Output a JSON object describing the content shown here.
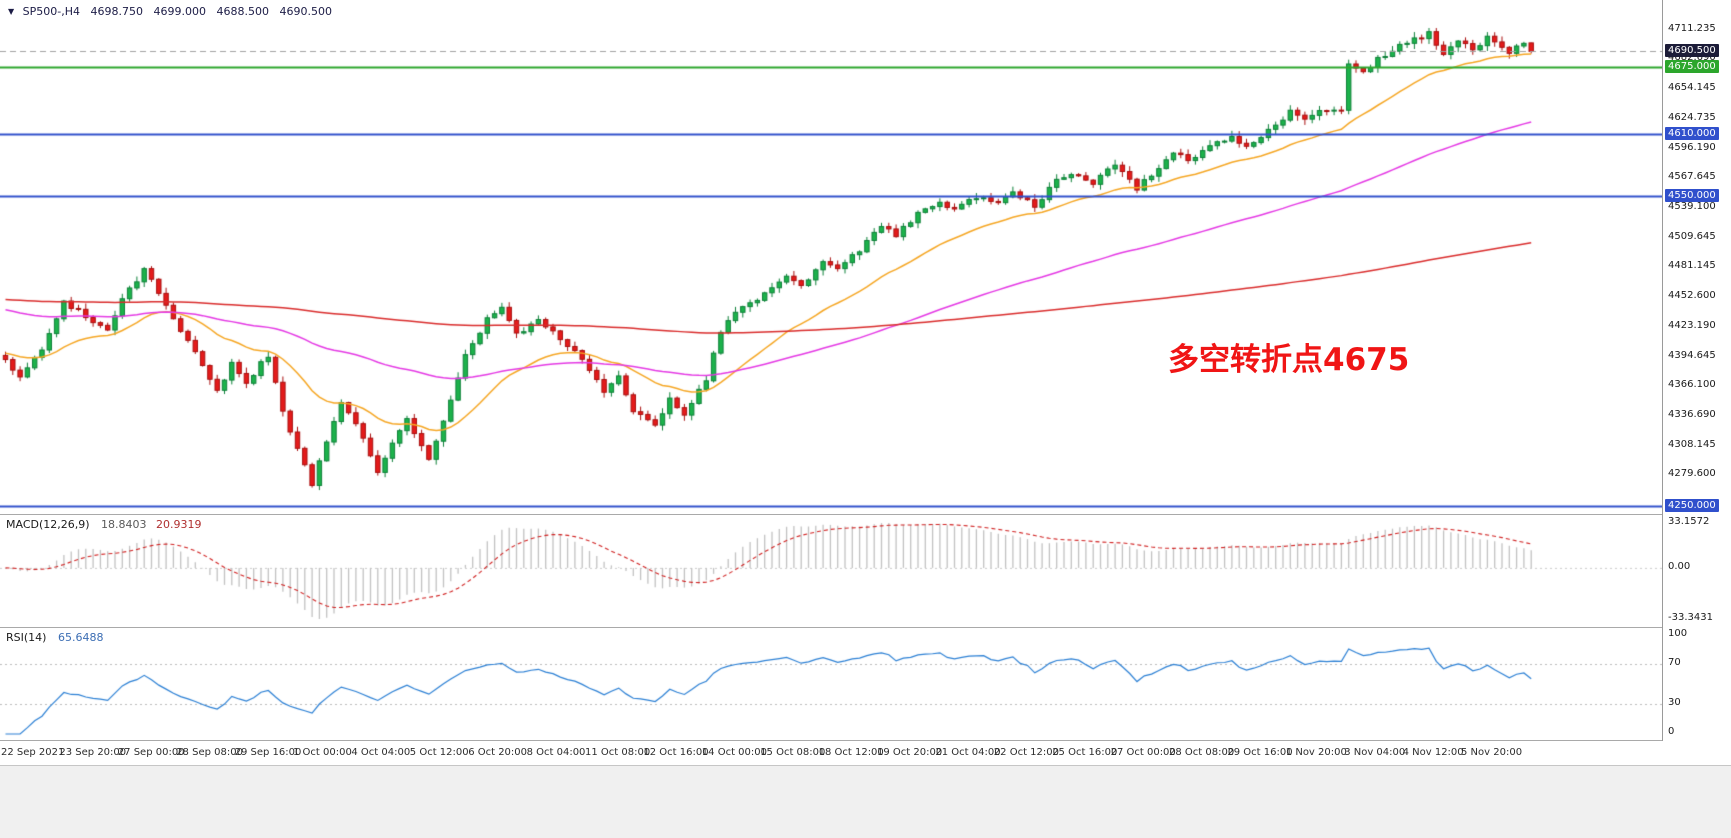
{
  "header": {
    "symbol_timeframe": "SP500-,H4",
    "open": "4698.750",
    "high": "4699.000",
    "low": "4688.500",
    "close": "4690.500"
  },
  "annotation": {
    "text": "多空转折点4675",
    "color": "#f01515"
  },
  "colors": {
    "background": "#ffffff",
    "up_candle": "#1cb24b",
    "up_candle_border": "#0d8038",
    "down_candle": "#e41b1b",
    "down_candle_border": "#a80f0f",
    "ma_fast": "#f5a623",
    "ma_medium": "#e438e4",
    "ma_slow": "#d92b2b",
    "macd_histogram": "#c2c2c2",
    "macd_signal": "#d02020",
    "macd_zero": "#c9c9c9",
    "rsi_line": "#2a7fd4",
    "rsi_levels": "#bbbbbb",
    "level_green": "#2ca62c",
    "level_blue": "#3050cc",
    "bid_line": "#a0a0a0",
    "bid_badge_bg": "#1c1c38",
    "axis_text": "#1a1a1a",
    "time_text": "#2d2d2d"
  },
  "price_axis": {
    "ticks": [
      {
        "label": "4711.235",
        "value": 4711.235
      },
      {
        "label": "4682.690",
        "value": 4682.69
      },
      {
        "label": "4654.145",
        "value": 4654.145
      },
      {
        "label": "4624.735",
        "value": 4624.735
      },
      {
        "label": "4596.190",
        "value": 4596.19
      },
      {
        "label": "4567.645",
        "value": 4567.645
      },
      {
        "label": "4539.100",
        "value": 4539.1
      },
      {
        "label": "4509.645",
        "value": 4509.645
      },
      {
        "label": "4481.145",
        "value": 4481.145
      },
      {
        "label": "4452.600",
        "value": 4452.6
      },
      {
        "label": "4423.190",
        "value": 4423.19
      },
      {
        "label": "4394.645",
        "value": 4394.645
      },
      {
        "label": "4366.100",
        "value": 4366.1
      },
      {
        "label": "4336.690",
        "value": 4336.69
      },
      {
        "label": "4308.145",
        "value": 4308.145
      },
      {
        "label": "4279.600",
        "value": 4279.6
      }
    ],
    "badges": [
      {
        "label": "4690.500",
        "value": 4690.5,
        "bg": "#1c1c38"
      },
      {
        "label": "4675.000",
        "value": 4675.0,
        "bg": "#2ca62c"
      },
      {
        "label": "4610.000",
        "value": 4610.0,
        "bg": "#3050cc"
      },
      {
        "label": "4550.000",
        "value": 4550.0,
        "bg": "#3050cc"
      },
      {
        "label": "4250.000",
        "value": 4250.0,
        "bg": "#3050cc"
      }
    ]
  },
  "levels": [
    {
      "name": "bid-price-line",
      "value": 4690.5,
      "color": "#a0a0a0",
      "width": 1,
      "dash": true
    },
    {
      "name": "green-level-4675",
      "value": 4675,
      "color": "#2ca62c",
      "width": 2,
      "dash": false
    },
    {
      "name": "blue-level-4610",
      "value": 4610,
      "color": "#3050cc",
      "width": 2,
      "dash": false
    },
    {
      "name": "blue-level-4550",
      "value": 4550,
      "color": "#3050cc",
      "width": 2,
      "dash": false
    },
    {
      "name": "blue-level-4250",
      "value": 4250,
      "color": "#3050cc",
      "width": 2,
      "dash": false
    }
  ],
  "macd_panel": {
    "label": "MACD(12,26,9)",
    "value_main": "18.8403",
    "value_signal": "20.9319",
    "axis_max": "33.1572",
    "axis_zero": "0.00",
    "axis_min": "-33.3431"
  },
  "rsi_panel": {
    "label": "RSI(14)",
    "value": "65.6488",
    "axis_top": "100",
    "axis_upper": "70",
    "axis_lower": "30",
    "axis_bottom": "0"
  },
  "time_axis": {
    "labels": [
      "22 Sep 2021",
      "23 Sep 20:00",
      "27 Sep 00:00",
      "28 Sep 08:00",
      "29 Sep 16:00",
      "1 Oct 00:00",
      "4 Oct 04:00",
      "5 Oct 12:00",
      "6 Oct 20:00",
      "8 Oct 04:00",
      "11 Oct 08:00",
      "12 Oct 16:00",
      "14 Oct 00:00",
      "15 Oct 08:00",
      "18 Oct 12:00",
      "19 Oct 20:00",
      "21 Oct 04:00",
      "22 Oct 12:00",
      "25 Oct 16:00",
      "27 Oct 00:00",
      "28 Oct 08:00",
      "29 Oct 16:00",
      "1 Nov 20:00",
      "3 Nov 04:00",
      "4 Nov 12:00",
      "5 Nov 20:00"
    ]
  },
  "chart_data": {
    "type": "candlestick",
    "symbol": "SP500-",
    "timeframe": "H4",
    "title": "SP500- H4 candlestick chart with MACD(12,26,9) and RSI(14)",
    "last_ohlc": {
      "open": 4698.75,
      "high": 4699.0,
      "low": 4688.5,
      "close": 4690.5
    },
    "visible_price_range": [
      4244,
      4740
    ],
    "candle_count": 210,
    "candles_per_label": 8,
    "close_anchors": [
      [
        0,
        4392
      ],
      [
        2,
        4374
      ],
      [
        5,
        4400
      ],
      [
        8,
        4448
      ],
      [
        11,
        4434
      ],
      [
        14,
        4420
      ],
      [
        16,
        4452
      ],
      [
        19,
        4478
      ],
      [
        22,
        4446
      ],
      [
        24,
        4420
      ],
      [
        27,
        4386
      ],
      [
        29,
        4360
      ],
      [
        31,
        4388
      ],
      [
        33,
        4370
      ],
      [
        36,
        4396
      ],
      [
        38,
        4340
      ],
      [
        42,
        4272
      ],
      [
        44,
        4312
      ],
      [
        46,
        4352
      ],
      [
        48,
        4330
      ],
      [
        51,
        4283
      ],
      [
        53,
        4310
      ],
      [
        55,
        4335
      ],
      [
        58,
        4296
      ],
      [
        60,
        4330
      ],
      [
        63,
        4398
      ],
      [
        66,
        4430
      ],
      [
        68,
        4442
      ],
      [
        70,
        4415
      ],
      [
        73,
        4430
      ],
      [
        75,
        4420
      ],
      [
        78,
        4400
      ],
      [
        80,
        4382
      ],
      [
        82,
        4360
      ],
      [
        84,
        4374
      ],
      [
        86,
        4342
      ],
      [
        89,
        4328
      ],
      [
        91,
        4352
      ],
      [
        93,
        4338
      ],
      [
        96,
        4372
      ],
      [
        98,
        4420
      ],
      [
        100,
        4438
      ],
      [
        104,
        4456
      ],
      [
        107,
        4472
      ],
      [
        109,
        4464
      ],
      [
        112,
        4486
      ],
      [
        114,
        4478
      ],
      [
        117,
        4498
      ],
      [
        120,
        4520
      ],
      [
        122,
        4512
      ],
      [
        125,
        4532
      ],
      [
        128,
        4543
      ],
      [
        130,
        4536
      ],
      [
        133,
        4549
      ],
      [
        136,
        4546
      ],
      [
        138,
        4554
      ],
      [
        141,
        4540
      ],
      [
        144,
        4565
      ],
      [
        146,
        4573
      ],
      [
        149,
        4561
      ],
      [
        152,
        4582
      ],
      [
        155,
        4558
      ],
      [
        157,
        4572
      ],
      [
        160,
        4592
      ],
      [
        162,
        4584
      ],
      [
        165,
        4600
      ],
      [
        168,
        4606
      ],
      [
        170,
        4598
      ],
      [
        173,
        4614
      ],
      [
        176,
        4632
      ],
      [
        178,
        4625
      ],
      [
        181,
        4634
      ],
      [
        183,
        4632
      ],
      [
        184,
        4680
      ],
      [
        186,
        4672
      ],
      [
        189,
        4688
      ],
      [
        192,
        4700
      ],
      [
        195,
        4708
      ],
      [
        197,
        4688
      ],
      [
        199,
        4700
      ],
      [
        201,
        4692
      ],
      [
        203,
        4704
      ],
      [
        206,
        4688
      ],
      [
        208,
        4699
      ],
      [
        209,
        4690.5
      ]
    ],
    "moving_averages": [
      {
        "name": "fast-ma",
        "color": "#f5a623",
        "alpha": 0.09,
        "seed": 4398
      },
      {
        "name": "medium-ma",
        "color": "#e438e4",
        "alpha": 0.025,
        "seed": 4440
      },
      {
        "name": "slow-ma",
        "color": "#d92b2b",
        "alpha": 0.006,
        "seed": 4450
      }
    ],
    "macd": {
      "fast": 12,
      "slow": 26,
      "signal": 9,
      "current_macd": 18.8403,
      "current_signal": 20.9319,
      "display_max": 33.1572,
      "display_min": -33.3431
    },
    "rsi": {
      "period": 14,
      "current": 65.6488,
      "scale": [
        0,
        100
      ],
      "levels": [
        70,
        30
      ]
    },
    "horizontal_levels": [
      4675,
      4610,
      4550,
      4250
    ],
    "annotation_level": 4675
  }
}
